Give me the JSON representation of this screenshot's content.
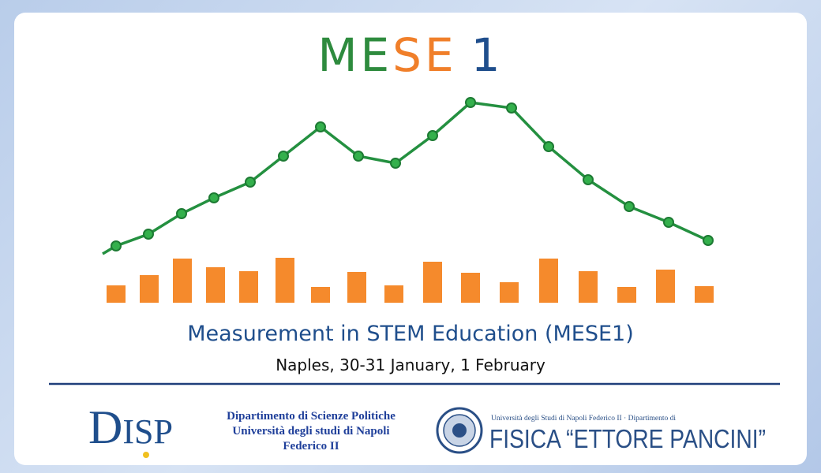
{
  "header": {
    "title_parts": [
      "ME",
      "SE",
      "1"
    ],
    "subtitle": "Measurement in STEM Education (MESE1)",
    "dates": "Naples, 30-31 January, 1 February"
  },
  "logos": {
    "disp": {
      "initial": "D",
      "rest": "ISP",
      "lines": [
        "Dipartimento di Scienze Politiche",
        "Università degli studi di Napoli",
        "Federico II"
      ]
    },
    "fisica": {
      "small": "Università degli Studi di Napoli Federico II · Dipartimento di",
      "name": "FISICA “ETTORE PANCINI”"
    }
  }
}
